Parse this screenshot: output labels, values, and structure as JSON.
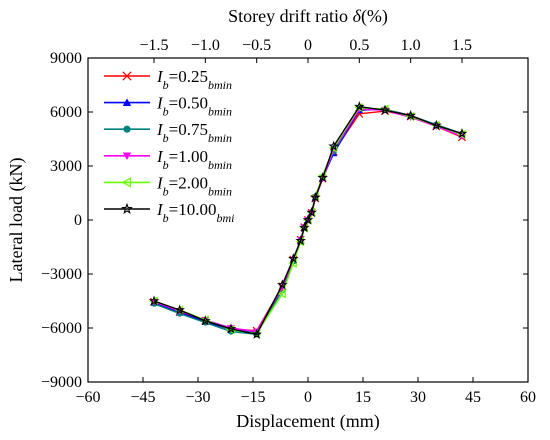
{
  "chart_data": {
    "type": "line",
    "xlabel": "Displacement (mm)",
    "ylabel": "Lateral load (kN)",
    "top_axis_label": {
      "base": "Storey drift ratio ",
      "symbol": "δ",
      "unit": "(%)"
    },
    "xlim": [
      -60,
      60
    ],
    "ylim": [
      -9000,
      9000
    ],
    "x_ticks": [
      -60,
      -45,
      -30,
      -15,
      0,
      15,
      30,
      45,
      60
    ],
    "x_tick_labels": [
      "−60",
      "−45",
      "−30",
      "−15",
      "0",
      "15",
      "30",
      "45",
      "60"
    ],
    "y_ticks": [
      -9000,
      -6000,
      -3000,
      0,
      3000,
      6000,
      9000
    ],
    "y_tick_labels": [
      "−9000",
      "−6000",
      "−3000",
      "0",
      "3000",
      "6000",
      "9000"
    ],
    "top_ticks": [
      -1.5,
      -1.0,
      -0.5,
      0,
      0.5,
      1.0,
      1.5
    ],
    "top_tick_labels": [
      "−1.5",
      "−1.0",
      "−0.5",
      "0",
      "0.5",
      "1.0",
      "1.5"
    ],
    "top_scale_mm_per_percent": 28,
    "grid": false,
    "legend_position": "top-left",
    "x": [
      -42,
      -35,
      -28,
      -21,
      -14,
      -7,
      -4,
      -2,
      -1,
      0,
      1,
      2,
      4,
      7,
      14,
      21,
      28,
      35,
      42
    ],
    "series": [
      {
        "legend": {
          "i": "I",
          "sub1": "b",
          "eq": "=0.25",
          "sub2": "bmin"
        },
        "color": "#ff0000",
        "marker": "x",
        "values": [
          -4550,
          -5100,
          -5600,
          -6050,
          -6150,
          -3700,
          -2200,
          -1100,
          -400,
          0,
          400,
          1200,
          2300,
          3800,
          5900,
          6050,
          5750,
          5200,
          4600
        ]
      },
      {
        "legend": {
          "i": "I",
          "sub1": "b",
          "eq": "=0.50",
          "sub2": "bmin"
        },
        "color": "#0000ff",
        "marker": "triangle-up",
        "values": [
          -4600,
          -5150,
          -5650,
          -6100,
          -6250,
          -3800,
          -2250,
          -1150,
          -420,
          0,
          420,
          1250,
          2350,
          3700,
          6100,
          6150,
          5800,
          5250,
          4750
        ]
      },
      {
        "legend": {
          "i": "I",
          "sub1": "b",
          "eq": "=0.75",
          "sub2": "bmin"
        },
        "color": "#008080",
        "marker": "circle",
        "values": [
          -4650,
          -5200,
          -5700,
          -6200,
          -6350,
          -3900,
          -2300,
          -1200,
          -440,
          0,
          440,
          1300,
          2400,
          3800,
          6200,
          6150,
          5800,
          5300,
          4800
        ]
      },
      {
        "legend": {
          "i": "I",
          "sub1": "b",
          "eq": "=1.00",
          "sub2": "bmin"
        },
        "color": "#ff00ff",
        "marker": "triangle-down",
        "values": [
          -4550,
          -5050,
          -5550,
          -6000,
          -6200,
          -3750,
          -2200,
          -1100,
          -400,
          0,
          400,
          1200,
          2300,
          3900,
          6150,
          6100,
          5700,
          5200,
          4650
        ]
      },
      {
        "legend": {
          "i": "I",
          "sub1": "b",
          "eq": "=2.00",
          "sub2": "bmin"
        },
        "color": "#66ff00",
        "marker": "triangle-left",
        "values": [
          -4500,
          -5000,
          -5550,
          -6100,
          -6300,
          -4100,
          -2400,
          -1200,
          -440,
          0,
          440,
          1300,
          2450,
          4000,
          6250,
          6150,
          5750,
          5250,
          4750
        ]
      },
      {
        "legend": {
          "i": "I",
          "sub1": "b",
          "eq": "=10.00",
          "sub2": "bmi"
        },
        "color": "#000000",
        "marker": "star",
        "values": [
          -4500,
          -5000,
          -5600,
          -6050,
          -6350,
          -3600,
          -2150,
          -1150,
          -420,
          0,
          420,
          1250,
          2350,
          4100,
          6300,
          6100,
          5800,
          5250,
          4800
        ]
      }
    ]
  }
}
